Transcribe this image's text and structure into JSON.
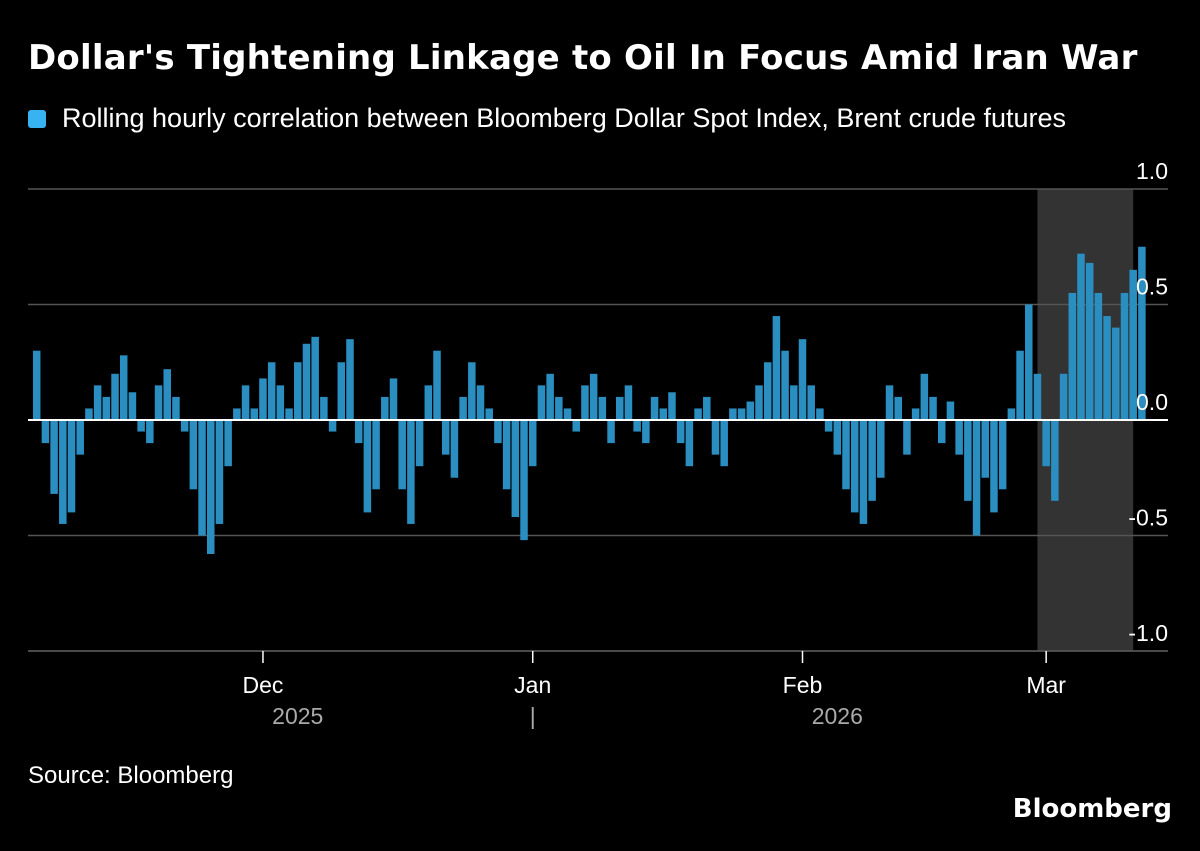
{
  "title": "Dollar's Tightening Linkage to Oil In Focus Amid Iran War",
  "source": "Source: Bloomberg",
  "brand": "Bloomberg",
  "colors": {
    "background": "#000000",
    "bar": "#2a8ec0",
    "legend_swatch": "#36b3f0",
    "highlight": "#333333",
    "grid": "#555555",
    "zero_line": "#ffffff",
    "tick_text": "#ffffff",
    "year_text": "#aaaaaa"
  },
  "chart_data": {
    "type": "bar",
    "x_scale": "time",
    "x_range": [
      "2025-11-04",
      "2026-03-15"
    ],
    "ylim": [
      -1.0,
      1.0
    ],
    "yticks": [
      {
        "value": 1.0,
        "label": "1.0"
      },
      {
        "value": 0.5,
        "label": "0.5"
      },
      {
        "value": 0.0,
        "label": "0.0"
      },
      {
        "value": -0.5,
        "label": "-0.5"
      },
      {
        "value": -1.0,
        "label": "-1.0"
      }
    ],
    "xticks": [
      {
        "date": "2025-12-01",
        "label": "Dec"
      },
      {
        "date": "2026-01-01",
        "label": "Jan"
      },
      {
        "date": "2026-02-01",
        "label": "Feb"
      },
      {
        "date": "2026-03-01",
        "label": "Mar"
      }
    ],
    "year_labels": [
      {
        "date": "2025-12-05",
        "label": "2025"
      },
      {
        "date": "2026-01-01",
        "label": "|"
      },
      {
        "date": "2026-02-05",
        "label": "2026"
      }
    ],
    "highlight_range": [
      "2026-02-28",
      "2026-03-11"
    ],
    "grid": true,
    "series": [
      {
        "name": "Rolling hourly correlation between Bloomberg Dollar Spot Index, Brent crude futures",
        "points": [
          [
            "2025-11-05",
            0.3
          ],
          [
            "2025-11-06",
            -0.1
          ],
          [
            "2025-11-07",
            -0.32
          ],
          [
            "2025-11-08",
            -0.45
          ],
          [
            "2025-11-09",
            -0.4
          ],
          [
            "2025-11-10",
            -0.15
          ],
          [
            "2025-11-11",
            0.05
          ],
          [
            "2025-11-12",
            0.15
          ],
          [
            "2025-11-13",
            0.1
          ],
          [
            "2025-11-14",
            0.2
          ],
          [
            "2025-11-15",
            0.28
          ],
          [
            "2025-11-16",
            0.12
          ],
          [
            "2025-11-17",
            -0.05
          ],
          [
            "2025-11-18",
            -0.1
          ],
          [
            "2025-11-19",
            0.15
          ],
          [
            "2025-11-20",
            0.22
          ],
          [
            "2025-11-21",
            0.1
          ],
          [
            "2025-11-22",
            -0.05
          ],
          [
            "2025-11-23",
            -0.3
          ],
          [
            "2025-11-24",
            -0.5
          ],
          [
            "2025-11-25",
            -0.58
          ],
          [
            "2025-11-26",
            -0.45
          ],
          [
            "2025-11-27",
            -0.2
          ],
          [
            "2025-11-28",
            0.05
          ],
          [
            "2025-11-29",
            0.15
          ],
          [
            "2025-11-30",
            0.05
          ],
          [
            "2025-12-01",
            0.18
          ],
          [
            "2025-12-02",
            0.25
          ],
          [
            "2025-12-03",
            0.15
          ],
          [
            "2025-12-04",
            0.05
          ],
          [
            "2025-12-05",
            0.25
          ],
          [
            "2025-12-06",
            0.33
          ],
          [
            "2025-12-07",
            0.36
          ],
          [
            "2025-12-08",
            0.1
          ],
          [
            "2025-12-09",
            -0.05
          ],
          [
            "2025-12-10",
            0.25
          ],
          [
            "2025-12-11",
            0.35
          ],
          [
            "2025-12-12",
            -0.1
          ],
          [
            "2025-12-13",
            -0.4
          ],
          [
            "2025-12-14",
            -0.3
          ],
          [
            "2025-12-15",
            0.1
          ],
          [
            "2025-12-16",
            0.18
          ],
          [
            "2025-12-17",
            -0.3
          ],
          [
            "2025-12-18",
            -0.45
          ],
          [
            "2025-12-19",
            -0.2
          ],
          [
            "2025-12-20",
            0.15
          ],
          [
            "2025-12-21",
            0.3
          ],
          [
            "2025-12-22",
            -0.15
          ],
          [
            "2025-12-23",
            -0.25
          ],
          [
            "2025-12-24",
            0.1
          ],
          [
            "2025-12-25",
            0.25
          ],
          [
            "2025-12-26",
            0.15
          ],
          [
            "2025-12-27",
            0.05
          ],
          [
            "2025-12-28",
            -0.1
          ],
          [
            "2025-12-29",
            -0.3
          ],
          [
            "2025-12-30",
            -0.42
          ],
          [
            "2025-12-31",
            -0.52
          ],
          [
            "2026-01-01",
            -0.2
          ],
          [
            "2026-01-02",
            0.15
          ],
          [
            "2026-01-03",
            0.2
          ],
          [
            "2026-01-04",
            0.1
          ],
          [
            "2026-01-05",
            0.05
          ],
          [
            "2026-01-06",
            -0.05
          ],
          [
            "2026-01-07",
            0.15
          ],
          [
            "2026-01-08",
            0.2
          ],
          [
            "2026-01-09",
            0.1
          ],
          [
            "2026-01-10",
            -0.1
          ],
          [
            "2026-01-11",
            0.1
          ],
          [
            "2026-01-12",
            0.15
          ],
          [
            "2026-01-13",
            -0.05
          ],
          [
            "2026-01-14",
            -0.1
          ],
          [
            "2026-01-15",
            0.1
          ],
          [
            "2026-01-16",
            0.05
          ],
          [
            "2026-01-17",
            0.12
          ],
          [
            "2026-01-18",
            -0.1
          ],
          [
            "2026-01-19",
            -0.2
          ],
          [
            "2026-01-20",
            0.05
          ],
          [
            "2026-01-21",
            0.1
          ],
          [
            "2026-01-22",
            -0.15
          ],
          [
            "2026-01-23",
            -0.2
          ],
          [
            "2026-01-24",
            0.05
          ],
          [
            "2026-01-25",
            0.05
          ],
          [
            "2026-01-26",
            0.08
          ],
          [
            "2026-01-27",
            0.15
          ],
          [
            "2026-01-28",
            0.25
          ],
          [
            "2026-01-29",
            0.45
          ],
          [
            "2026-01-30",
            0.3
          ],
          [
            "2026-01-31",
            0.15
          ],
          [
            "2026-02-01",
            0.35
          ],
          [
            "2026-02-02",
            0.15
          ],
          [
            "2026-02-03",
            0.05
          ],
          [
            "2026-02-04",
            -0.05
          ],
          [
            "2026-02-05",
            -0.15
          ],
          [
            "2026-02-06",
            -0.3
          ],
          [
            "2026-02-07",
            -0.4
          ],
          [
            "2026-02-08",
            -0.45
          ],
          [
            "2026-02-09",
            -0.35
          ],
          [
            "2026-02-10",
            -0.25
          ],
          [
            "2026-02-11",
            0.15
          ],
          [
            "2026-02-12",
            0.1
          ],
          [
            "2026-02-13",
            -0.15
          ],
          [
            "2026-02-14",
            0.05
          ],
          [
            "2026-02-15",
            0.2
          ],
          [
            "2026-02-16",
            0.1
          ],
          [
            "2026-02-17",
            -0.1
          ],
          [
            "2026-02-18",
            0.08
          ],
          [
            "2026-02-19",
            -0.15
          ],
          [
            "2026-02-20",
            -0.35
          ],
          [
            "2026-02-21",
            -0.5
          ],
          [
            "2026-02-22",
            -0.25
          ],
          [
            "2026-02-23",
            -0.4
          ],
          [
            "2026-02-24",
            -0.3
          ],
          [
            "2026-02-25",
            0.05
          ],
          [
            "2026-02-26",
            0.3
          ],
          [
            "2026-02-27",
            0.5
          ],
          [
            "2026-02-28",
            0.2
          ],
          [
            "2026-03-01",
            -0.2
          ],
          [
            "2026-03-02",
            -0.35
          ],
          [
            "2026-03-03",
            0.2
          ],
          [
            "2026-03-04",
            0.55
          ],
          [
            "2026-03-05",
            0.72
          ],
          [
            "2026-03-06",
            0.68
          ],
          [
            "2026-03-07",
            0.55
          ],
          [
            "2026-03-08",
            0.45
          ],
          [
            "2026-03-09",
            0.4
          ],
          [
            "2026-03-10",
            0.55
          ],
          [
            "2026-03-11",
            0.65
          ],
          [
            "2026-03-12",
            0.75
          ]
        ]
      }
    ]
  }
}
